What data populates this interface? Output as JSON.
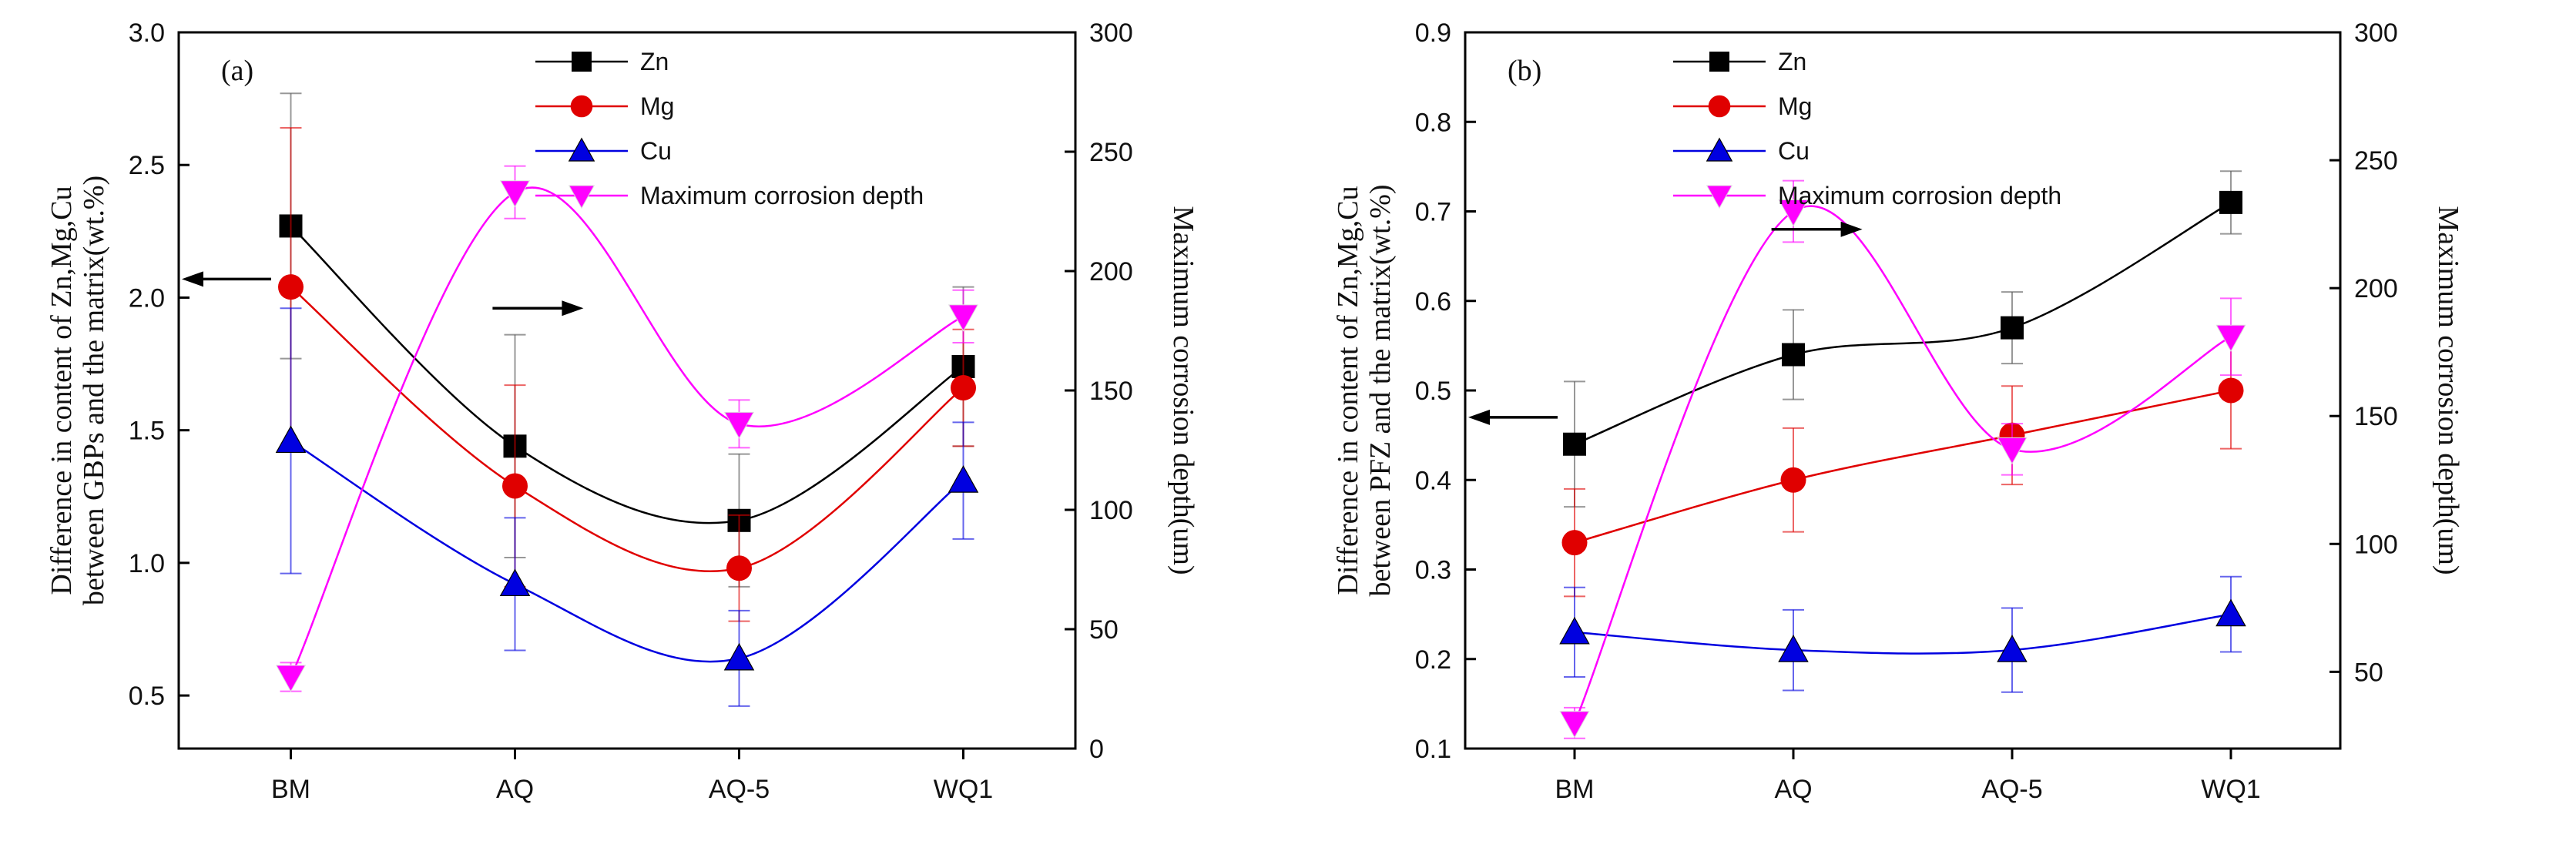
{
  "chart_data": [
    {
      "type": "line",
      "panel_label": "(a)",
      "categories": [
        "BM",
        "AQ",
        "AQ-5",
        "WQ1"
      ],
      "ylabel_left": [
        "Difference in content of Zn,Mg,Cu",
        "between GBPs and the matrix(wt.%)"
      ],
      "ylabel_right": "Maximum corrosion depth(um)",
      "left_ylim": [
        0.3,
        3.0
      ],
      "left_ticks": [
        "0.5",
        "1.0",
        "1.5",
        "2.0",
        "2.5",
        "3.0"
      ],
      "right_ylim": [
        0,
        300
      ],
      "right_ticks": [
        "0",
        "50",
        "100",
        "150",
        "200",
        "250",
        "300"
      ],
      "legend": [
        "Zn",
        "Mg",
        "Cu",
        "Maximum corrosion depth"
      ],
      "arrows": [
        {
          "direction": "left",
          "category_pos": 0,
          "value": 2.07
        },
        {
          "direction": "right",
          "category_pos": 1.4,
          "value": 1.96
        }
      ],
      "series": [
        {
          "name": "Zn",
          "axis": "left",
          "marker": "square",
          "color": "#000000",
          "values": [
            2.27,
            1.44,
            1.16,
            1.74
          ],
          "errors": [
            0.5,
            0.42,
            0.25,
            0.3
          ]
        },
        {
          "name": "Mg",
          "axis": "left",
          "marker": "circle",
          "color": "#e00000",
          "values": [
            2.04,
            1.29,
            0.98,
            1.66
          ],
          "errors": [
            0.6,
            0.38,
            0.2,
            0.22
          ]
        },
        {
          "name": "Cu",
          "axis": "left",
          "marker": "triangle-up",
          "color": "#0000e0",
          "values": [
            1.46,
            0.92,
            0.64,
            1.31
          ],
          "errors": [
            0.5,
            0.25,
            0.18,
            0.22
          ]
        },
        {
          "name": "Maximum corrosion depth",
          "axis": "right",
          "marker": "triangle-down",
          "color": "#ff00ff",
          "values": [
            30,
            233,
            136,
            181
          ],
          "errors": [
            6,
            11,
            10,
            11
          ]
        }
      ]
    },
    {
      "type": "line",
      "panel_label": "(b)",
      "categories": [
        "BM",
        "AQ",
        "AQ-5",
        "WQ1"
      ],
      "ylabel_left": [
        "Difference in content of Zn,Mg,Cu",
        "between PFZ and the matrix(wt.%)"
      ],
      "ylabel_right": "Maximum corrosion depth(um)",
      "left_ylim": [
        0.1,
        0.9
      ],
      "left_ticks": [
        "0.1",
        "0.2",
        "0.3",
        "0.4",
        "0.5",
        "0.6",
        "0.7",
        "0.8",
        "0.9"
      ],
      "right_ylim": [
        20,
        300
      ],
      "right_ticks": [
        "50",
        "100",
        "150",
        "200",
        "250",
        "300"
      ],
      "legend": [
        "Zn",
        "Mg",
        "Cu",
        "Maximum corrosion depth"
      ],
      "arrows": [
        {
          "direction": "left",
          "category_pos": 0,
          "value": 0.47
        },
        {
          "direction": "right",
          "category_pos": 1.4,
          "value": 0.68
        }
      ],
      "series": [
        {
          "name": "Zn",
          "axis": "left",
          "marker": "square",
          "color": "#000000",
          "values": [
            0.44,
            0.54,
            0.57,
            0.71
          ],
          "errors": [
            0.07,
            0.05,
            0.04,
            0.035
          ]
        },
        {
          "name": "Mg",
          "axis": "left",
          "marker": "circle",
          "color": "#e00000",
          "values": [
            0.33,
            0.4,
            0.45,
            0.5
          ],
          "errors": [
            0.06,
            0.058,
            0.055,
            0.065
          ]
        },
        {
          "name": "Cu",
          "axis": "left",
          "marker": "triangle-up",
          "color": "#0000e0",
          "values": [
            0.23,
            0.21,
            0.21,
            0.25
          ],
          "errors": [
            0.05,
            0.045,
            0.047,
            0.042
          ]
        },
        {
          "name": "Maximum corrosion depth",
          "axis": "right",
          "marker": "triangle-down",
          "color": "#ff00ff",
          "values": [
            30,
            230,
            137,
            181
          ],
          "errors": [
            6,
            12,
            10,
            15
          ]
        }
      ]
    }
  ]
}
